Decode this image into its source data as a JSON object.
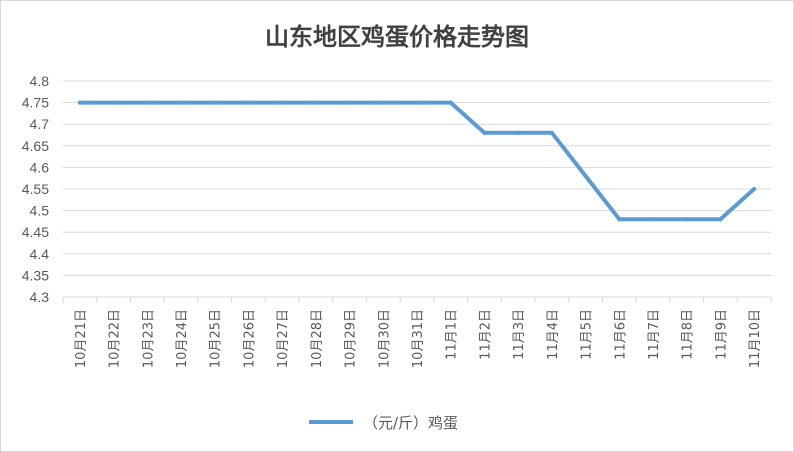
{
  "chart_data": {
    "type": "line",
    "title": "山东地区鸡蛋价格走势图",
    "categories": [
      "10月21日",
      "10月22日",
      "10月23日",
      "10月24日",
      "10月25日",
      "10月26日",
      "10月27日",
      "10月28日",
      "10月29日",
      "10月30日",
      "10月31日",
      "11月1日",
      "11月2日",
      "11月3日",
      "11月4日",
      "11月5日",
      "11月6日",
      "11月7日",
      "11月8日",
      "11月9日",
      "11月10日"
    ],
    "series": [
      {
        "name": "（元/斤）鸡蛋",
        "values": [
          4.75,
          4.75,
          4.75,
          4.75,
          4.75,
          4.75,
          4.75,
          4.75,
          4.75,
          4.75,
          4.75,
          4.75,
          4.68,
          4.68,
          4.68,
          4.58,
          4.48,
          4.48,
          4.48,
          4.48,
          4.55
        ]
      }
    ],
    "yticks": [
      "4.3",
      "4.35",
      "4.4",
      "4.45",
      "4.5",
      "4.55",
      "4.6",
      "4.65",
      "4.7",
      "4.75",
      "4.8"
    ],
    "ylim": [
      4.3,
      4.8
    ],
    "grid": true,
    "legend_position": "bottom",
    "colors": {
      "line": "#5b9bd5",
      "grid": "#d9d9d9",
      "text": "#595959"
    }
  }
}
